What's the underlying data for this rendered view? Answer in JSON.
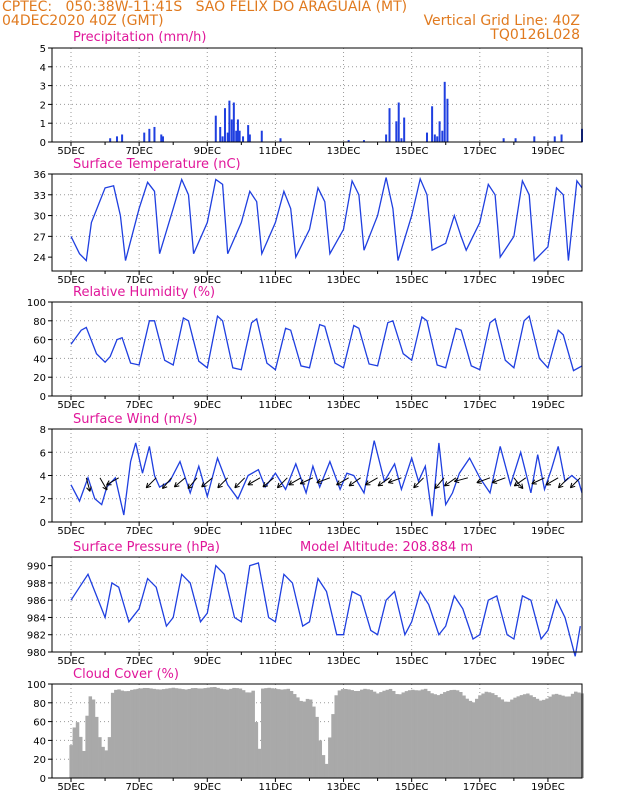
{
  "header": {
    "line1_left": "CPTEC:   050:38W-11:41S   SAO FELIX DO ARAGUAIA (MT)",
    "line2_left": "04DEC2020 40Z (GMT)",
    "line2_right": "Vertical Grid Line: 40Z",
    "line3_right": "TQ0126L028"
  },
  "colors": {
    "header": "#e07a1f",
    "title": "#e0179a",
    "line": "#1f3fe0",
    "bar": "#1f3fe0",
    "cloud": "#a9a9a9",
    "grid": "#9a9a9a",
    "arrow": "#000000"
  },
  "date_ticks": [
    "5DEC",
    "7DEC",
    "9DEC",
    "11DEC",
    "13DEC",
    "15DEC",
    "17DEC",
    "19DEC"
  ],
  "chart_data": [
    {
      "id": "precip",
      "type": "bar",
      "title": "Precipitation (mm/h)",
      "ylim": [
        0,
        5
      ],
      "yticks": [
        0,
        1,
        2,
        3,
        4,
        5
      ],
      "xlim_days": [
        0,
        15
      ],
      "x_days": [
        1.15,
        1.35,
        1.5,
        2.15,
        2.3,
        2.45,
        2.65,
        2.7,
        4.25,
        4.38,
        4.45,
        4.52,
        4.6,
        4.65,
        4.72,
        4.78,
        4.85,
        4.9,
        4.95,
        5.05,
        5.2,
        5.25,
        5.6,
        6.15,
        8.15,
        8.6,
        9.25,
        9.35,
        9.55,
        9.62,
        9.7,
        9.78,
        10.45,
        10.6,
        10.68,
        10.75,
        10.82,
        10.9,
        10.97,
        11.05,
        12.7,
        13.05,
        13.6,
        14.2,
        14.4,
        15.0
      ],
      "values": [
        0.2,
        0.3,
        0.4,
        0.5,
        0.7,
        0.8,
        0.4,
        0.3,
        1.4,
        0.8,
        0.3,
        1.8,
        0.5,
        2.2,
        1.2,
        2.1,
        0.6,
        1.2,
        0.6,
        0.3,
        0.9,
        0.4,
        0.6,
        0.2,
        0.1,
        0.1,
        0.4,
        1.8,
        1.1,
        2.1,
        0.2,
        1.3,
        0.5,
        1.9,
        0.4,
        0.3,
        1.1,
        0.6,
        3.2,
        2.3,
        0.2,
        0.2,
        0.3,
        0.3,
        0.4,
        0.7
      ]
    },
    {
      "id": "temp",
      "type": "line",
      "title": "Surface Temperature (nC)",
      "ylim": [
        22,
        36
      ],
      "yticks": [
        24,
        27,
        30,
        33,
        36
      ],
      "xlim_days": [
        0,
        15
      ],
      "x_days": [
        0,
        0.25,
        0.45,
        0.6,
        1.0,
        1.25,
        1.45,
        1.6,
        2.0,
        2.25,
        2.45,
        2.6,
        3.0,
        3.25,
        3.45,
        3.6,
        4.0,
        4.25,
        4.45,
        4.6,
        5.0,
        5.25,
        5.45,
        5.6,
        6.0,
        6.25,
        6.45,
        6.6,
        7.0,
        7.25,
        7.45,
        7.6,
        8.0,
        8.25,
        8.45,
        8.6,
        9.0,
        9.25,
        9.45,
        9.6,
        10.0,
        10.25,
        10.45,
        10.6,
        11.0,
        11.25,
        11.45,
        11.6,
        12.0,
        12.25,
        12.45,
        12.6,
        13.0,
        13.25,
        13.45,
        13.6,
        14.0,
        14.25,
        14.45,
        14.6,
        14.85,
        15.0
      ],
      "values": [
        27,
        24.5,
        23.5,
        29,
        34,
        34.3,
        30,
        23.5,
        31,
        34.8,
        33.5,
        24.5,
        31,
        35.2,
        33,
        24.5,
        29,
        35.2,
        34.5,
        24.5,
        29,
        33.5,
        32,
        24.5,
        29,
        33.5,
        31,
        24,
        28,
        34,
        32,
        24.5,
        28,
        35,
        33,
        25,
        30,
        35.5,
        31,
        23.5,
        30,
        35.3,
        33,
        25,
        26,
        30,
        27,
        25,
        29,
        34.5,
        33,
        24,
        27,
        35,
        33,
        23.5,
        25.5,
        34,
        33,
        23.5,
        35,
        34
      ]
    },
    {
      "id": "rh",
      "type": "line",
      "title": "Relative Humidity (%)",
      "ylim": [
        0,
        100
      ],
      "yticks": [
        0,
        20,
        40,
        60,
        80,
        100
      ],
      "xlim_days": [
        0,
        15
      ],
      "x_days": [
        0,
        0.3,
        0.45,
        0.75,
        1.0,
        1.15,
        1.35,
        1.5,
        1.75,
        2.0,
        2.3,
        2.45,
        2.75,
        3.0,
        3.3,
        3.45,
        3.75,
        4.0,
        4.3,
        4.45,
        4.75,
        5.0,
        5.3,
        5.45,
        5.75,
        6.0,
        6.3,
        6.45,
        6.75,
        7.0,
        7.3,
        7.45,
        7.75,
        8.0,
        8.3,
        8.45,
        8.75,
        9.0,
        9.3,
        9.45,
        9.75,
        10.0,
        10.3,
        10.45,
        10.75,
        11.0,
        11.3,
        11.45,
        11.75,
        12.0,
        12.3,
        12.45,
        12.75,
        13.0,
        13.3,
        13.45,
        13.75,
        14.0,
        14.3,
        14.45,
        14.75,
        15.0
      ],
      "values": [
        55,
        70,
        73,
        45,
        36,
        42,
        60,
        62,
        35,
        33,
        80,
        80,
        38,
        33,
        83,
        80,
        37,
        30,
        85,
        80,
        30,
        28,
        78,
        82,
        35,
        28,
        72,
        70,
        32,
        30,
        76,
        74,
        35,
        30,
        75,
        72,
        34,
        32,
        78,
        80,
        45,
        38,
        84,
        80,
        33,
        30,
        72,
        70,
        32,
        28,
        78,
        82,
        38,
        30,
        80,
        85,
        40,
        30,
        70,
        65,
        27,
        32
      ]
    },
    {
      "id": "wind",
      "type": "line",
      "title": "Surface Wind (m/s)",
      "ylim": [
        0,
        8
      ],
      "yticks": [
        0,
        2,
        4,
        6,
        8
      ],
      "xlim_days": [
        0,
        15
      ],
      "x_days": [
        0,
        0.25,
        0.5,
        0.7,
        0.9,
        1.05,
        1.3,
        1.55,
        1.75,
        1.9,
        2.1,
        2.3,
        2.45,
        2.6,
        2.9,
        3.2,
        3.5,
        3.75,
        4.0,
        4.3,
        4.6,
        4.9,
        5.2,
        5.5,
        5.7,
        6.0,
        6.3,
        6.6,
        6.9,
        7.1,
        7.3,
        7.6,
        7.9,
        8.1,
        8.3,
        8.6,
        8.9,
        9.2,
        9.5,
        9.7,
        10.0,
        10.2,
        10.4,
        10.6,
        10.8,
        11.0,
        11.2,
        11.4,
        11.7,
        12.0,
        12.3,
        12.6,
        12.9,
        13.2,
        13.5,
        13.7,
        13.9,
        14.1,
        14.3,
        14.5,
        14.7,
        14.9,
        15.0
      ],
      "values": [
        3.2,
        1.8,
        3.8,
        2.0,
        1.5,
        3.0,
        3.8,
        0.6,
        5.2,
        6.8,
        4.2,
        6.5,
        4.0,
        3.0,
        3.5,
        5.2,
        2.5,
        4.8,
        2.2,
        5.5,
        3.2,
        2.0,
        4.0,
        4.5,
        3.0,
        4.2,
        2.8,
        5.0,
        2.5,
        4.8,
        3.0,
        5.2,
        2.8,
        4.2,
        4.0,
        2.5,
        7.0,
        3.5,
        5.0,
        2.8,
        5.5,
        3.5,
        4.8,
        0.5,
        6.8,
        1.5,
        2.5,
        4.2,
        5.5,
        3.8,
        2.5,
        6.5,
        3.2,
        6.0,
        2.5,
        5.8,
        2.8,
        4.5,
        6.5,
        3.5,
        4.0,
        3.5,
        2.5
      ],
      "arrows_x_days": [
        0.45,
        0.85,
        1.4,
        2.5,
        2.95,
        3.35,
        3.7,
        4.15,
        4.6,
        5.1,
        5.55,
        5.95,
        6.35,
        6.75,
        7.1,
        7.6,
        8.15,
        8.5,
        9.0,
        9.35,
        9.7,
        10.35,
        10.95,
        11.3,
        11.65,
        12.3,
        12.75,
        13.0,
        13.35,
        13.9,
        14.3,
        14.6,
        14.95
      ],
      "arrows_deg": [
        75,
        60,
        150,
        135,
        130,
        140,
        130,
        140,
        135,
        135,
        150,
        140,
        135,
        150,
        155,
        160,
        150,
        145,
        150,
        145,
        160,
        135,
        130,
        145,
        165,
        160,
        160,
        50,
        145,
        155,
        150,
        135,
        135
      ]
    },
    {
      "id": "pressure",
      "type": "line",
      "title": "Surface Pressure (hPa)",
      "annotation": "Model Altitude: 208.884  m",
      "ylim": [
        980,
        991
      ],
      "yticks": [
        980,
        982,
        984,
        986,
        988,
        990
      ],
      "xlim_days": [
        0,
        15
      ],
      "x_days": [
        0,
        0.25,
        0.5,
        0.8,
        1.0,
        1.2,
        1.4,
        1.7,
        2.0,
        2.25,
        2.5,
        2.8,
        3.0,
        3.25,
        3.5,
        3.8,
        4.0,
        4.25,
        4.5,
        4.8,
        5.0,
        5.25,
        5.5,
        5.8,
        6.0,
        6.25,
        6.5,
        6.8,
        7.0,
        7.25,
        7.5,
        7.8,
        8.0,
        8.25,
        8.5,
        8.8,
        9.0,
        9.25,
        9.5,
        9.8,
        10.0,
        10.25,
        10.5,
        10.8,
        11.0,
        11.25,
        11.5,
        11.8,
        12.0,
        12.25,
        12.5,
        12.8,
        13.0,
        13.25,
        13.5,
        13.8,
        14.0,
        14.25,
        14.5,
        14.8,
        14.95
      ],
      "values": [
        986,
        987.5,
        989,
        986,
        984,
        988,
        987.5,
        983.5,
        985,
        988.5,
        987.5,
        983,
        984,
        989,
        988,
        983.5,
        984.5,
        990,
        989,
        984,
        983.5,
        990,
        990.3,
        984,
        983.5,
        989,
        988,
        983,
        983.5,
        988.5,
        987,
        982,
        982,
        987,
        986.5,
        982.5,
        982,
        986,
        987,
        982,
        983.5,
        987,
        985.5,
        982,
        983,
        986.5,
        985,
        981.5,
        982,
        986,
        986.5,
        982,
        981.5,
        986.5,
        986,
        981.5,
        982.5,
        986,
        984,
        979.5,
        983
      ]
    },
    {
      "id": "cloud",
      "type": "area",
      "title": "Cloud Cover (%)",
      "ylim": [
        0,
        100
      ],
      "yticks": [
        0,
        20,
        40,
        60,
        80,
        100
      ],
      "xlim_days": [
        0,
        15
      ],
      "x_days": [
        0,
        0.1,
        0.2,
        0.3,
        0.4,
        0.5,
        0.6,
        0.7,
        0.8,
        0.9,
        1.0,
        1.1,
        1.2,
        1.35,
        1.5,
        1.65,
        1.8,
        2.0,
        2.2,
        2.4,
        2.6,
        2.8,
        3.0,
        3.2,
        3.4,
        3.6,
        3.8,
        4.0,
        4.2,
        4.4,
        4.6,
        4.8,
        5.0,
        5.2,
        5.4,
        5.5,
        5.6,
        5.8,
        6.0,
        6.2,
        6.4,
        6.6,
        6.8,
        7.0,
        7.2,
        7.35,
        7.5,
        7.65,
        7.8,
        8.0,
        8.2,
        8.4,
        8.6,
        8.8,
        9.0,
        9.2,
        9.4,
        9.6,
        9.8,
        10.0,
        10.2,
        10.4,
        10.6,
        10.8,
        11.0,
        11.2,
        11.4,
        11.6,
        11.8,
        12.0,
        12.2,
        12.4,
        12.6,
        12.8,
        13.0,
        13.2,
        13.4,
        13.6,
        13.8,
        14.0,
        14.2,
        14.4,
        14.6,
        14.8,
        15.0
      ],
      "values": [
        35,
        55,
        60,
        40,
        25,
        85,
        88,
        80,
        50,
        35,
        30,
        28,
        90,
        95,
        93,
        92,
        94,
        95,
        96,
        95,
        94,
        95,
        96,
        95,
        94,
        96,
        95,
        96,
        97,
        95,
        94,
        96,
        95,
        90,
        94,
        2,
        95,
        96,
        95,
        94,
        95,
        88,
        80,
        86,
        70,
        30,
        15,
        60,
        92,
        95,
        94,
        92,
        95,
        94,
        90,
        93,
        95,
        88,
        92,
        94,
        93,
        95,
        90,
        88,
        92,
        94,
        93,
        85,
        80,
        88,
        92,
        90,
        85,
        80,
        85,
        88,
        90,
        86,
        82,
        85,
        90,
        88,
        86,
        92,
        90
      ]
    }
  ]
}
